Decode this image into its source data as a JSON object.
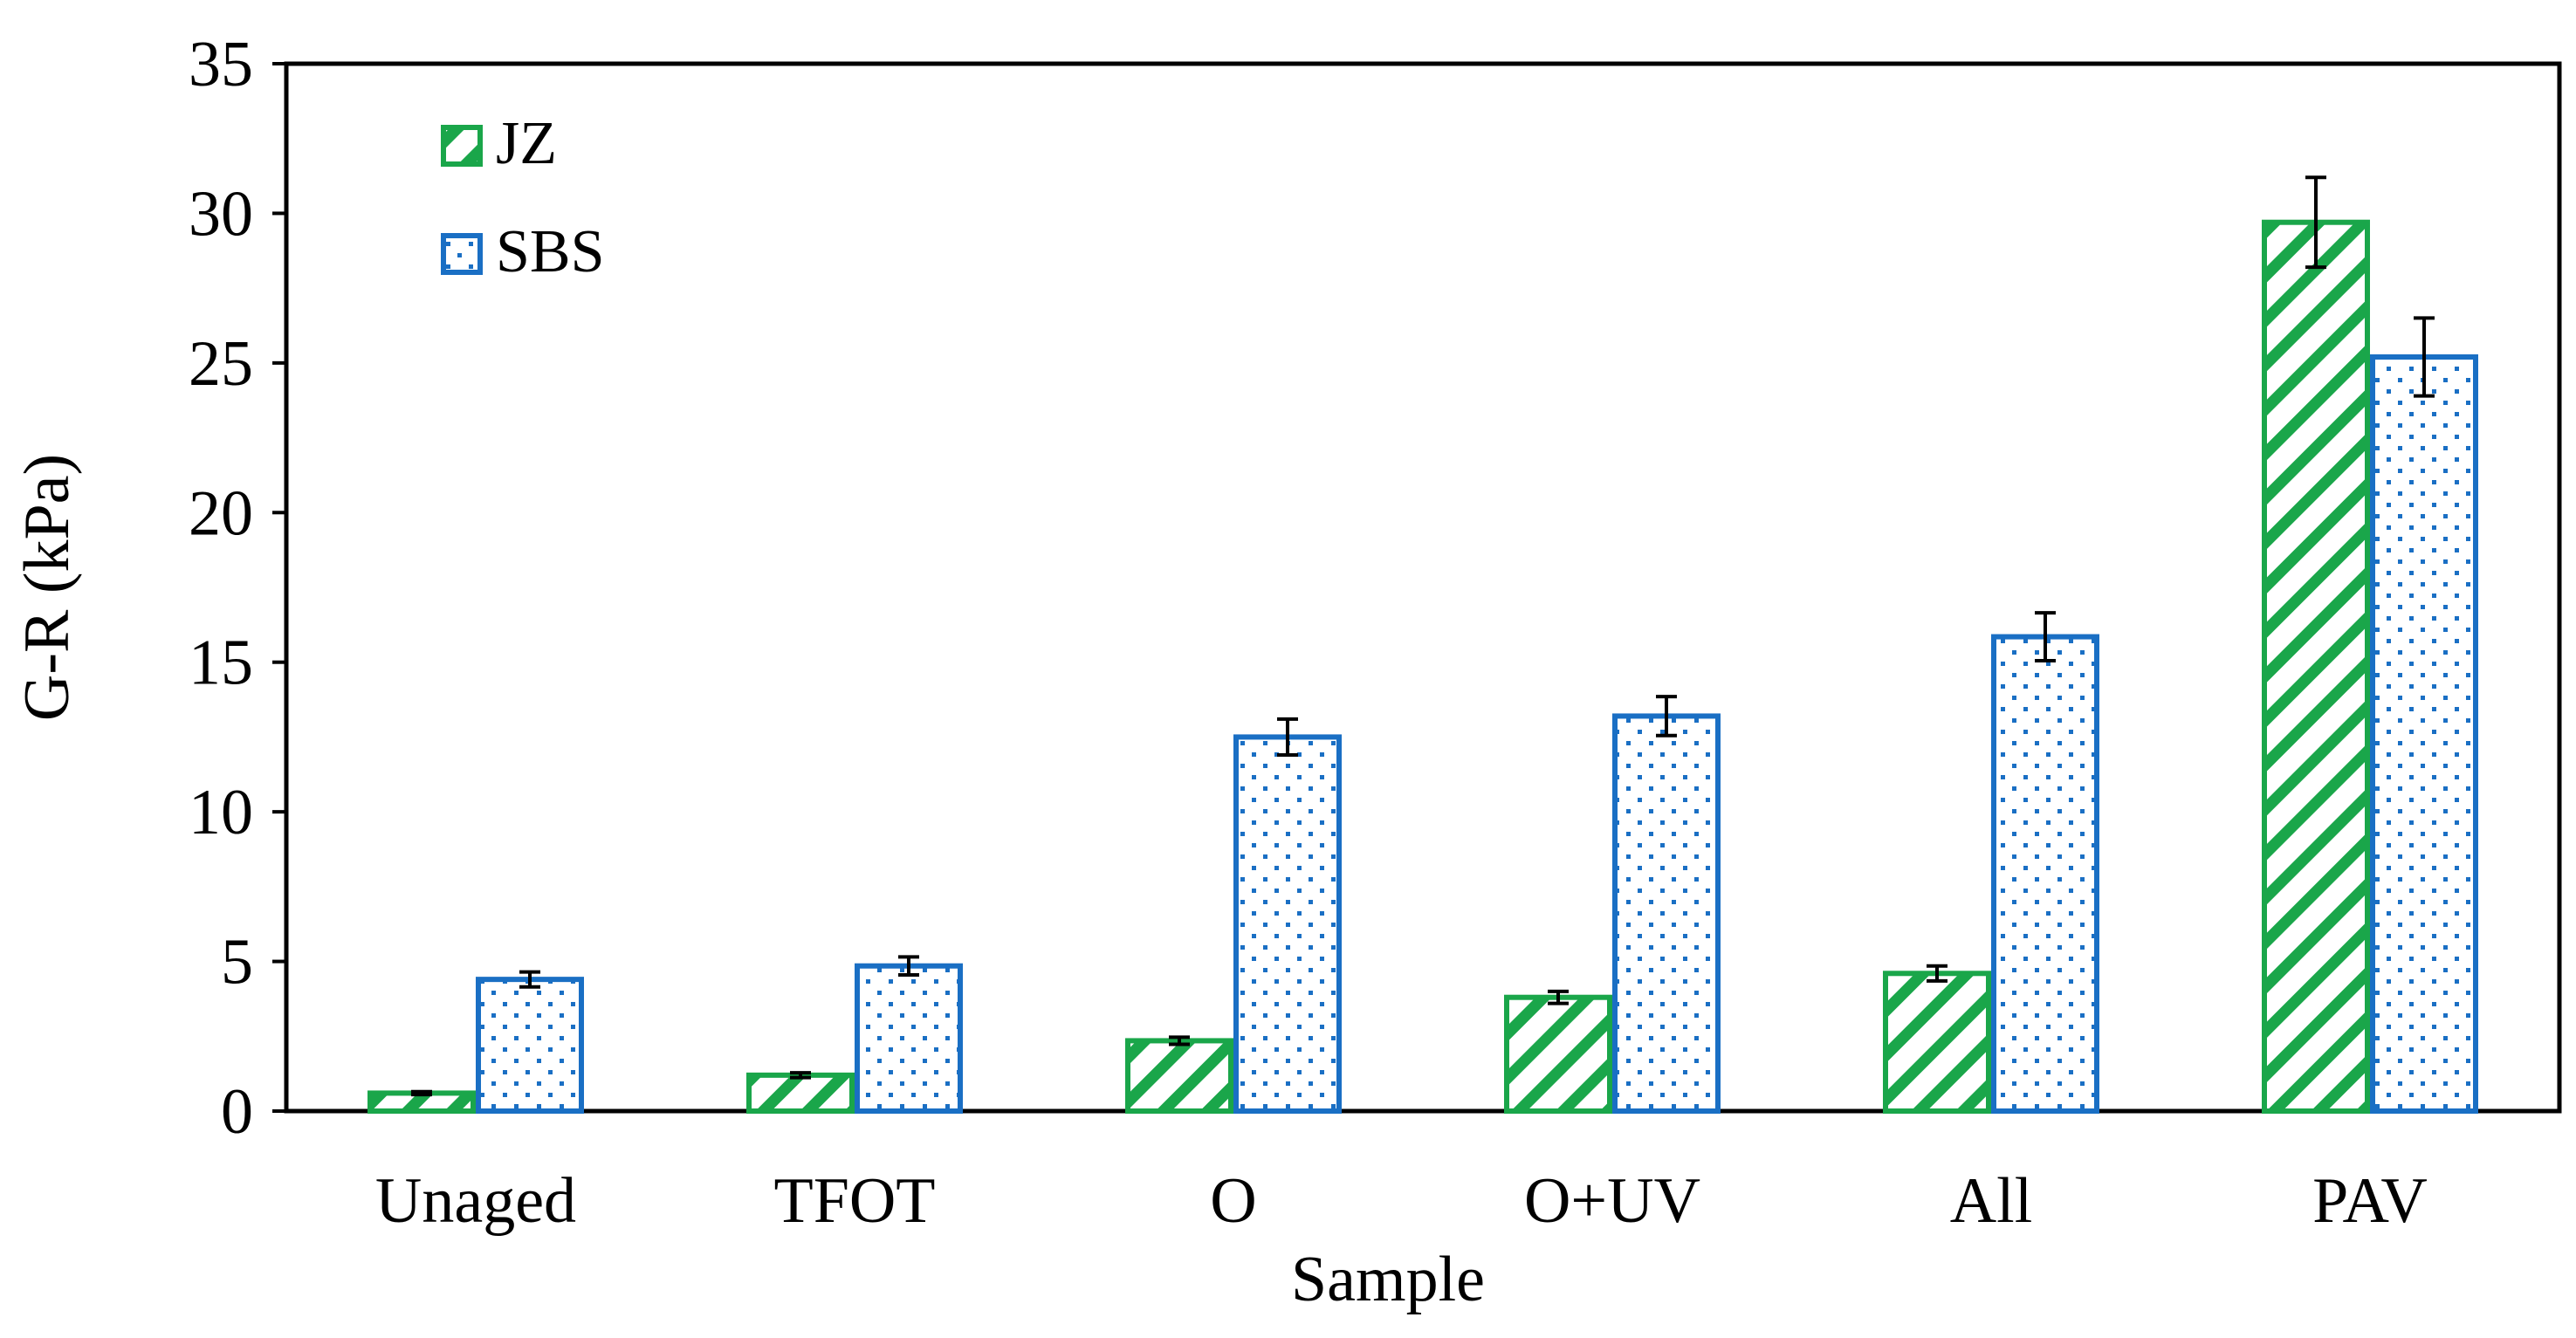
{
  "chart_data": {
    "type": "bar",
    "title": "",
    "xlabel": "Sample",
    "ylabel": "G-R (kPa)",
    "categories": [
      "Unaged",
      "TFOT",
      "O",
      "O+UV",
      "All",
      "PAV"
    ],
    "ylim": [
      0,
      35
    ],
    "yticks": [
      0,
      5,
      10,
      15,
      20,
      25,
      30,
      35
    ],
    "ytick_labels": [
      "0",
      "5",
      "10",
      "15",
      "20",
      "25",
      "30",
      "35"
    ],
    "grid": false,
    "legend": "top-left",
    "series": [
      {
        "name": "JZ",
        "pattern": "diagonal-stripes",
        "color": "#1aa64a",
        "values": [
          0.6,
          1.2,
          2.35,
          3.8,
          4.6,
          29.7
        ],
        "errors": [
          0.05,
          0.08,
          0.12,
          0.2,
          0.25,
          1.5
        ]
      },
      {
        "name": "SBS",
        "pattern": "dotted",
        "color": "#1a6fc4",
        "values": [
          4.4,
          4.85,
          12.5,
          13.2,
          15.85,
          25.2
        ],
        "errors": [
          0.25,
          0.3,
          0.6,
          0.65,
          0.8,
          1.3
        ]
      }
    ]
  }
}
